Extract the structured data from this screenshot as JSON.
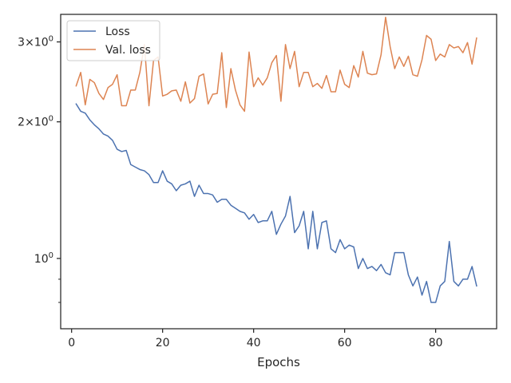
{
  "chart_data": {
    "type": "line",
    "title": "",
    "xlabel": "Epochs",
    "ylabel": "",
    "yscale": "log",
    "xlim": [
      -2.4,
      93.4
    ],
    "ylim": [
      0.7,
      3.45
    ],
    "xticks": [
      0,
      20,
      40,
      60,
      80
    ],
    "xtick_labels": [
      "0",
      "20",
      "40",
      "60",
      "80"
    ],
    "yticks_major": [
      1,
      2,
      3
    ],
    "ytick_labels": [
      "10^0",
      "2×10^0",
      "3×10^0"
    ],
    "yticks_minor": [
      0.8,
      0.9
    ],
    "grid": false,
    "legend_position": "upper-left",
    "series": [
      {
        "name": "Loss",
        "color": "#4c72b0",
        "x": [
          1,
          2,
          3,
          4,
          5,
          6,
          7,
          8,
          9,
          10,
          11,
          12,
          13,
          14,
          15,
          16,
          17,
          18,
          19,
          20,
          21,
          22,
          23,
          24,
          25,
          26,
          27,
          28,
          29,
          30,
          31,
          32,
          33,
          34,
          35,
          36,
          37,
          38,
          39,
          40,
          41,
          42,
          43,
          44,
          45,
          46,
          47,
          48,
          49,
          50,
          51,
          52,
          53,
          54,
          55,
          56,
          57,
          58,
          59,
          60,
          61,
          62,
          63,
          64,
          65,
          66,
          67,
          68,
          69,
          70,
          71,
          72,
          73,
          74,
          75,
          76,
          77,
          78,
          79,
          80,
          81,
          82,
          83,
          84,
          85,
          86,
          87,
          88,
          89
        ],
        "y": [
          2.19,
          2.11,
          2.09,
          2.02,
          1.97,
          1.93,
          1.88,
          1.86,
          1.82,
          1.74,
          1.72,
          1.73,
          1.61,
          1.59,
          1.57,
          1.56,
          1.53,
          1.47,
          1.47,
          1.56,
          1.48,
          1.46,
          1.41,
          1.45,
          1.46,
          1.48,
          1.37,
          1.45,
          1.39,
          1.39,
          1.38,
          1.33,
          1.35,
          1.35,
          1.31,
          1.29,
          1.27,
          1.26,
          1.22,
          1.25,
          1.2,
          1.21,
          1.21,
          1.27,
          1.13,
          1.19,
          1.24,
          1.37,
          1.14,
          1.18,
          1.27,
          1.05,
          1.27,
          1.05,
          1.2,
          1.21,
          1.05,
          1.03,
          1.1,
          1.05,
          1.07,
          1.06,
          0.95,
          1.0,
          0.95,
          0.96,
          0.94,
          0.97,
          0.93,
          0.92,
          1.03,
          1.03,
          1.03,
          0.92,
          0.87,
          0.91,
          0.83,
          0.89,
          0.8,
          0.8,
          0.87,
          0.89,
          1.09,
          0.89,
          0.87,
          0.9,
          0.9,
          0.96,
          0.87
        ]
      },
      {
        "name": "Val. loss",
        "color": "#dd8452",
        "x": [
          1,
          2,
          3,
          4,
          5,
          6,
          7,
          8,
          9,
          10,
          11,
          12,
          13,
          14,
          15,
          16,
          17,
          18,
          19,
          20,
          21,
          22,
          23,
          24,
          25,
          26,
          27,
          28,
          29,
          30,
          31,
          32,
          33,
          34,
          35,
          36,
          37,
          38,
          39,
          40,
          41,
          42,
          43,
          44,
          45,
          46,
          47,
          48,
          49,
          50,
          51,
          52,
          53,
          54,
          55,
          56,
          57,
          58,
          59,
          60,
          61,
          62,
          63,
          64,
          65,
          66,
          67,
          68,
          69,
          70,
          71,
          72,
          73,
          74,
          75,
          76,
          77,
          78,
          79,
          80,
          81,
          82,
          83,
          84,
          85,
          86,
          87,
          88,
          89
        ],
        "y": [
          2.4,
          2.57,
          2.18,
          2.48,
          2.44,
          2.31,
          2.24,
          2.38,
          2.42,
          2.54,
          2.17,
          2.17,
          2.35,
          2.35,
          2.57,
          2.96,
          2.17,
          2.73,
          2.78,
          2.28,
          2.3,
          2.34,
          2.35,
          2.22,
          2.45,
          2.2,
          2.25,
          2.52,
          2.55,
          2.19,
          2.3,
          2.31,
          2.84,
          2.15,
          2.62,
          2.35,
          2.18,
          2.11,
          2.85,
          2.39,
          2.5,
          2.41,
          2.5,
          2.7,
          2.8,
          2.22,
          2.96,
          2.62,
          2.86,
          2.39,
          2.57,
          2.57,
          2.39,
          2.43,
          2.37,
          2.53,
          2.33,
          2.33,
          2.6,
          2.42,
          2.38,
          2.66,
          2.51,
          2.86,
          2.56,
          2.54,
          2.55,
          2.81,
          3.4,
          2.93,
          2.62,
          2.78,
          2.65,
          2.79,
          2.54,
          2.52,
          2.74,
          3.1,
          3.04,
          2.73,
          2.82,
          2.78,
          2.96,
          2.91,
          2.93,
          2.84,
          2.99,
          2.68,
          3.06
        ]
      }
    ]
  }
}
